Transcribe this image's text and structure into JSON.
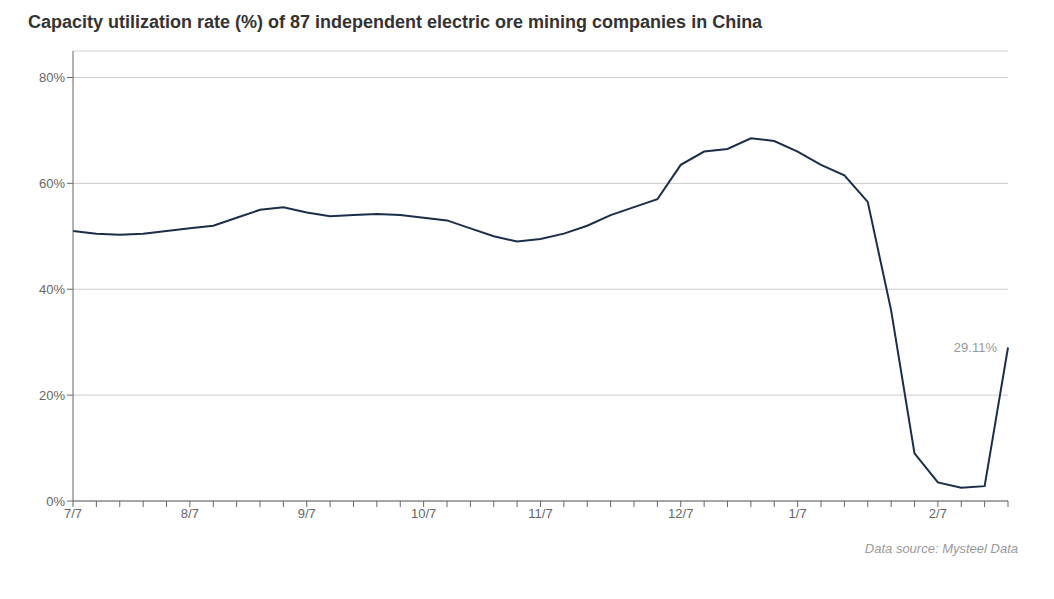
{
  "chart_data": {
    "type": "line",
    "title": "Capacity utilization rate (%) of 87 independent electric ore mining companies in China",
    "categories": [
      "7/7",
      null,
      null,
      null,
      null,
      "8/7",
      null,
      null,
      null,
      null,
      "9/7",
      null,
      null,
      null,
      null,
      "10/7",
      null,
      null,
      null,
      null,
      "11/7",
      null,
      null,
      null,
      null,
      null,
      "12/7",
      null,
      null,
      null,
      null,
      "1/7",
      null,
      null,
      null,
      null,
      null,
      "2/7",
      null,
      null,
      null
    ],
    "values": [
      51.0,
      50.5,
      50.3,
      50.5,
      51.0,
      51.5,
      52.0,
      53.5,
      55.0,
      55.5,
      54.5,
      53.8,
      54.0,
      54.2,
      54.0,
      53.5,
      53.0,
      51.5,
      50.0,
      49.0,
      49.5,
      50.5,
      52.0,
      54.0,
      55.5,
      57.0,
      63.5,
      66.0,
      66.5,
      68.5,
      68.0,
      66.0,
      63.5,
      61.5,
      56.5,
      36.0,
      9.0,
      3.5,
      2.5,
      2.8,
      29.0
    ],
    "color": "#1a2e4a",
    "ylim": [
      0,
      85
    ],
    "yticks": [
      {
        "value": 0,
        "label": "0%"
      },
      {
        "value": 20,
        "label": "20%"
      },
      {
        "value": 40,
        "label": "40%"
      },
      {
        "value": 60,
        "label": "60%"
      },
      {
        "value": 80,
        "label": "80%"
      }
    ],
    "grid": true,
    "annotations": [
      {
        "text": "29.11%"
      },
      {
        "text": "Data source: Mysteel Data"
      }
    ]
  }
}
